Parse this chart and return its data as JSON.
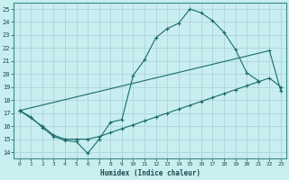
{
  "xlabel": "Humidex (Indice chaleur)",
  "bg_color": "#c8eef0",
  "line_color": "#1a6b6b",
  "xlim": [
    -0.5,
    23.5
  ],
  "ylim": [
    13.5,
    25.5
  ],
  "xticks": [
    0,
    1,
    2,
    3,
    4,
    5,
    6,
    7,
    8,
    9,
    10,
    11,
    12,
    13,
    14,
    15,
    16,
    17,
    18,
    19,
    20,
    21,
    22,
    23
  ],
  "yticks": [
    14,
    15,
    16,
    17,
    18,
    19,
    20,
    21,
    22,
    23,
    24,
    25
  ],
  "line1_x": [
    0,
    1,
    2,
    3,
    4,
    5,
    6,
    7,
    8,
    9,
    10,
    11,
    12,
    13,
    14,
    15,
    16,
    17,
    18,
    19,
    20,
    21
  ],
  "line1_y": [
    17.2,
    16.7,
    15.9,
    15.2,
    14.9,
    14.8,
    13.9,
    15.0,
    16.3,
    16.5,
    19.9,
    21.1,
    22.8,
    23.5,
    23.9,
    25.0,
    24.7,
    24.1,
    23.2,
    21.9,
    20.1,
    19.5
  ],
  "line2_x": [
    0,
    2,
    3,
    4,
    5,
    6,
    7,
    8,
    9,
    10,
    11,
    12,
    13,
    14,
    15,
    16,
    17,
    18,
    19,
    20,
    21,
    22,
    23
  ],
  "line2_y": [
    17.2,
    16.0,
    15.3,
    15.0,
    15.0,
    15.0,
    15.2,
    15.5,
    15.8,
    16.1,
    16.4,
    16.7,
    17.0,
    17.3,
    17.6,
    17.9,
    18.2,
    18.5,
    18.8,
    19.1,
    19.4,
    19.7,
    19.0
  ],
  "line3_x": [
    0,
    22,
    23
  ],
  "line3_y": [
    17.2,
    21.8,
    18.7
  ]
}
